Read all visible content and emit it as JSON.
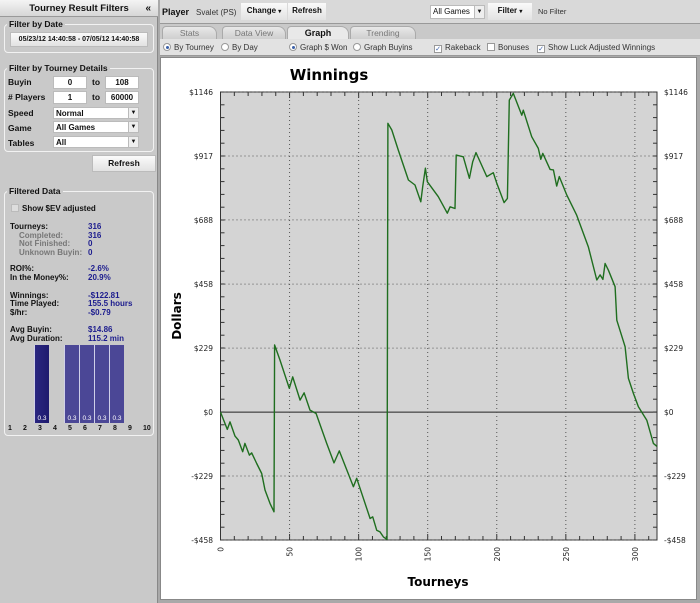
{
  "left_panel": {
    "title": "Tourney Result Filters",
    "collapse": "«",
    "date_group": {
      "label": "Filter by Date",
      "range": "05/23/12 14:40:58 - 07/05/12 14:40:58"
    },
    "details_group": {
      "label": "Filter by Tourney Details",
      "buyin": {
        "label": "Buyin",
        "from": "0",
        "to_label": "to",
        "to": "108"
      },
      "players": {
        "label": "# Players",
        "from": "1",
        "to_label": "to",
        "to": "60000"
      },
      "speed": {
        "label": "Speed",
        "value": "Normal"
      },
      "game": {
        "label": "Game",
        "value": "All Games"
      },
      "tables": {
        "label": "Tables",
        "value": "All"
      }
    },
    "refresh": "Refresh",
    "filtered": {
      "label": "Filtered Data",
      "ev_label": "Show $EV adjusted",
      "ev_checked": false,
      "rows": [
        {
          "label": "Tourneys:",
          "value": "316",
          "sub": false
        },
        {
          "label": "Completed:",
          "value": "316",
          "sub": true
        },
        {
          "label": "Not Finished:",
          "value": "0",
          "sub": true
        },
        {
          "label": "Unknown Buyin:",
          "value": "0",
          "sub": true
        },
        {
          "label": "ROI%:",
          "value": "-2.6%",
          "sub": false
        },
        {
          "label": "In the Money%:",
          "value": "20.9%",
          "sub": false
        },
        {
          "label": "Winnings:",
          "value": "-$122.81",
          "sub": false
        },
        {
          "label": "Time Played:",
          "value": "155.5 hours",
          "sub": false
        },
        {
          "label": "$/hr:",
          "value": "-$0.79",
          "sub": false
        },
        {
          "label": "Avg Buyin:",
          "value": "$14.86",
          "sub": false
        },
        {
          "label": "Avg Duration:",
          "value": "115.2 min",
          "sub": false
        }
      ],
      "histogram": {
        "categories": [
          "1",
          "2",
          "3",
          "4",
          "5",
          "6",
          "7",
          "8",
          "9",
          "10"
        ],
        "bars": [
          {
            "position": "3",
            "label": "0.3"
          },
          {
            "position": "5",
            "label": "0.3"
          },
          {
            "position": "6",
            "label": "0.3"
          },
          {
            "position": "7",
            "label": "0.3"
          },
          {
            "position": "8",
            "label": "0.3"
          }
        ]
      }
    }
  },
  "toolbar": {
    "player_label": "Player",
    "player": "Svalet (PS)",
    "change": "Change",
    "change_arrow": "▾",
    "refresh": "Refresh",
    "games": "All Games",
    "filter": "Filter",
    "filter_arrow": "▾",
    "filter_status": "No Filter"
  },
  "tabs": [
    {
      "label": "Stats"
    },
    {
      "label": "Data View"
    },
    {
      "label": "Graph",
      "active": true
    },
    {
      "label": "Trending"
    }
  ],
  "options": {
    "by_tourney": "By Tourney",
    "by_day": "By Day",
    "graph_won": "Graph $ Won",
    "graph_buyins": "Graph Buyins",
    "rakeback": "Rakeback",
    "bonuses": "Bonuses",
    "luck": "Show Luck Adjusted Winnings",
    "rakeback_checked": true,
    "bonuses_checked": false,
    "luck_checked": true
  },
  "colors": {
    "line": "#1f6e1f",
    "plot_bg": "#d4d4d4",
    "value_text": "#1c1c8e",
    "hist_bar": "#4b4796"
  },
  "chart_data": {
    "type": "line",
    "title": "Winnings",
    "xlabel": "Tourneys",
    "ylabel": "Dollars",
    "xlim": [
      0,
      316
    ],
    "ylim": [
      -458,
      1146
    ],
    "x_ticks": [
      0,
      50,
      100,
      150,
      200,
      250,
      300
    ],
    "y_ticks": [
      -458,
      -229,
      0,
      229,
      458,
      688,
      917,
      1146
    ],
    "y_tick_labels": [
      "-$458",
      "-$229",
      "$0",
      "$229",
      "$458",
      "$688",
      "$917",
      "$1146"
    ],
    "grid": true,
    "series": [
      {
        "points": [
          [
            0,
            0
          ],
          [
            4.9,
            -62
          ],
          [
            6.9,
            -35
          ],
          [
            10.5,
            -86
          ],
          [
            12.9,
            -100
          ],
          [
            16.1,
            -142
          ],
          [
            17.7,
            -112
          ],
          [
            20.9,
            -154
          ],
          [
            22.6,
            -146
          ],
          [
            26.2,
            -184
          ],
          [
            29.8,
            -220
          ],
          [
            32.2,
            -279
          ],
          [
            35.8,
            -327
          ],
          [
            38.7,
            -357
          ],
          [
            39.2,
            240
          ],
          [
            43.1,
            186
          ],
          [
            49.8,
            85
          ],
          [
            52.3,
            126
          ],
          [
            57.6,
            43
          ],
          [
            60.5,
            69
          ],
          [
            64.8,
            7
          ],
          [
            69.2,
            -5
          ],
          [
            76.9,
            -112
          ],
          [
            82.2,
            -182
          ],
          [
            86,
            -139
          ],
          [
            96.2,
            -267
          ],
          [
            98.6,
            -237
          ],
          [
            108.3,
            -381
          ],
          [
            110.2,
            -375
          ],
          [
            113.1,
            -423
          ],
          [
            115.5,
            -429
          ],
          [
            117.9,
            -447
          ],
          [
            120.5,
            -456
          ],
          [
            121.2,
            1034
          ],
          [
            124,
            1010
          ],
          [
            128.7,
            938
          ],
          [
            136,
            831
          ],
          [
            140.8,
            813
          ],
          [
            145,
            753
          ],
          [
            146.4,
            807
          ],
          [
            148.3,
            873
          ],
          [
            149.7,
            825
          ],
          [
            157.7,
            771
          ],
          [
            164.2,
            712
          ],
          [
            166.2,
            735
          ],
          [
            169.8,
            729
          ],
          [
            170.6,
            920
          ],
          [
            175.8,
            914
          ],
          [
            180.2,
            837
          ],
          [
            182.6,
            896
          ],
          [
            185,
            929
          ],
          [
            192.8,
            843
          ],
          [
            197.5,
            857
          ],
          [
            200,
            819
          ],
          [
            205.3,
            750
          ],
          [
            207.7,
            765
          ],
          [
            209.1,
            1117
          ],
          [
            212,
            1141
          ],
          [
            218.1,
            1063
          ],
          [
            219.2,
            1081
          ],
          [
            225.3,
            986
          ],
          [
            230.1,
            944
          ],
          [
            231.9,
            905
          ],
          [
            233.3,
            926
          ],
          [
            238.6,
            869
          ],
          [
            241,
            867
          ],
          [
            243.4,
            809
          ],
          [
            245.3,
            843
          ],
          [
            250.7,
            777
          ],
          [
            257.9,
            705
          ],
          [
            266.3,
            592
          ],
          [
            272.4,
            473
          ],
          [
            274.8,
            491
          ],
          [
            276.8,
            475
          ],
          [
            278.4,
            532
          ],
          [
            280.8,
            508
          ],
          [
            285.7,
            449
          ],
          [
            286.9,
            329
          ],
          [
            292.9,
            234
          ],
          [
            295.3,
            121
          ],
          [
            298.9,
            67
          ],
          [
            302.5,
            19
          ],
          [
            308.6,
            -29
          ],
          [
            313.4,
            -112
          ],
          [
            316,
            -123
          ]
        ]
      }
    ]
  }
}
